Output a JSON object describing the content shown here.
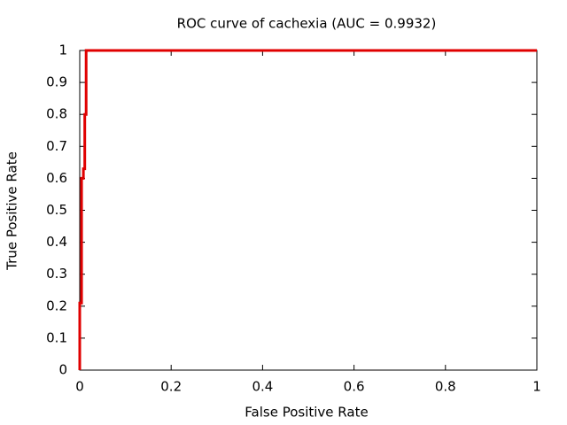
{
  "chart_data": {
    "type": "line",
    "title": "ROC curve of cachexia (AUC = 0.9932)",
    "x_label": "False Positive Rate",
    "y_label": "True Positive Rate",
    "x": [
      0,
      0,
      0.004,
      0.004,
      0.008,
      0.008,
      0.011,
      0.011,
      0.014,
      0.014,
      1
    ],
    "series": [
      {
        "color": "#e00000",
        "values": [
          0,
          0.21,
          0.21,
          0.6,
          0.6,
          0.63,
          0.63,
          0.8,
          0.8,
          1,
          1
        ]
      }
    ],
    "xlim": [
      0,
      1
    ],
    "ylim": [
      0,
      1
    ],
    "xticks": [
      0,
      0.2,
      0.4,
      0.6,
      0.8,
      1
    ],
    "yticks": [
      0,
      0.1,
      0.2,
      0.3,
      0.4,
      0.5,
      0.6,
      0.7,
      0.8,
      0.9,
      1
    ],
    "grid": false
  }
}
